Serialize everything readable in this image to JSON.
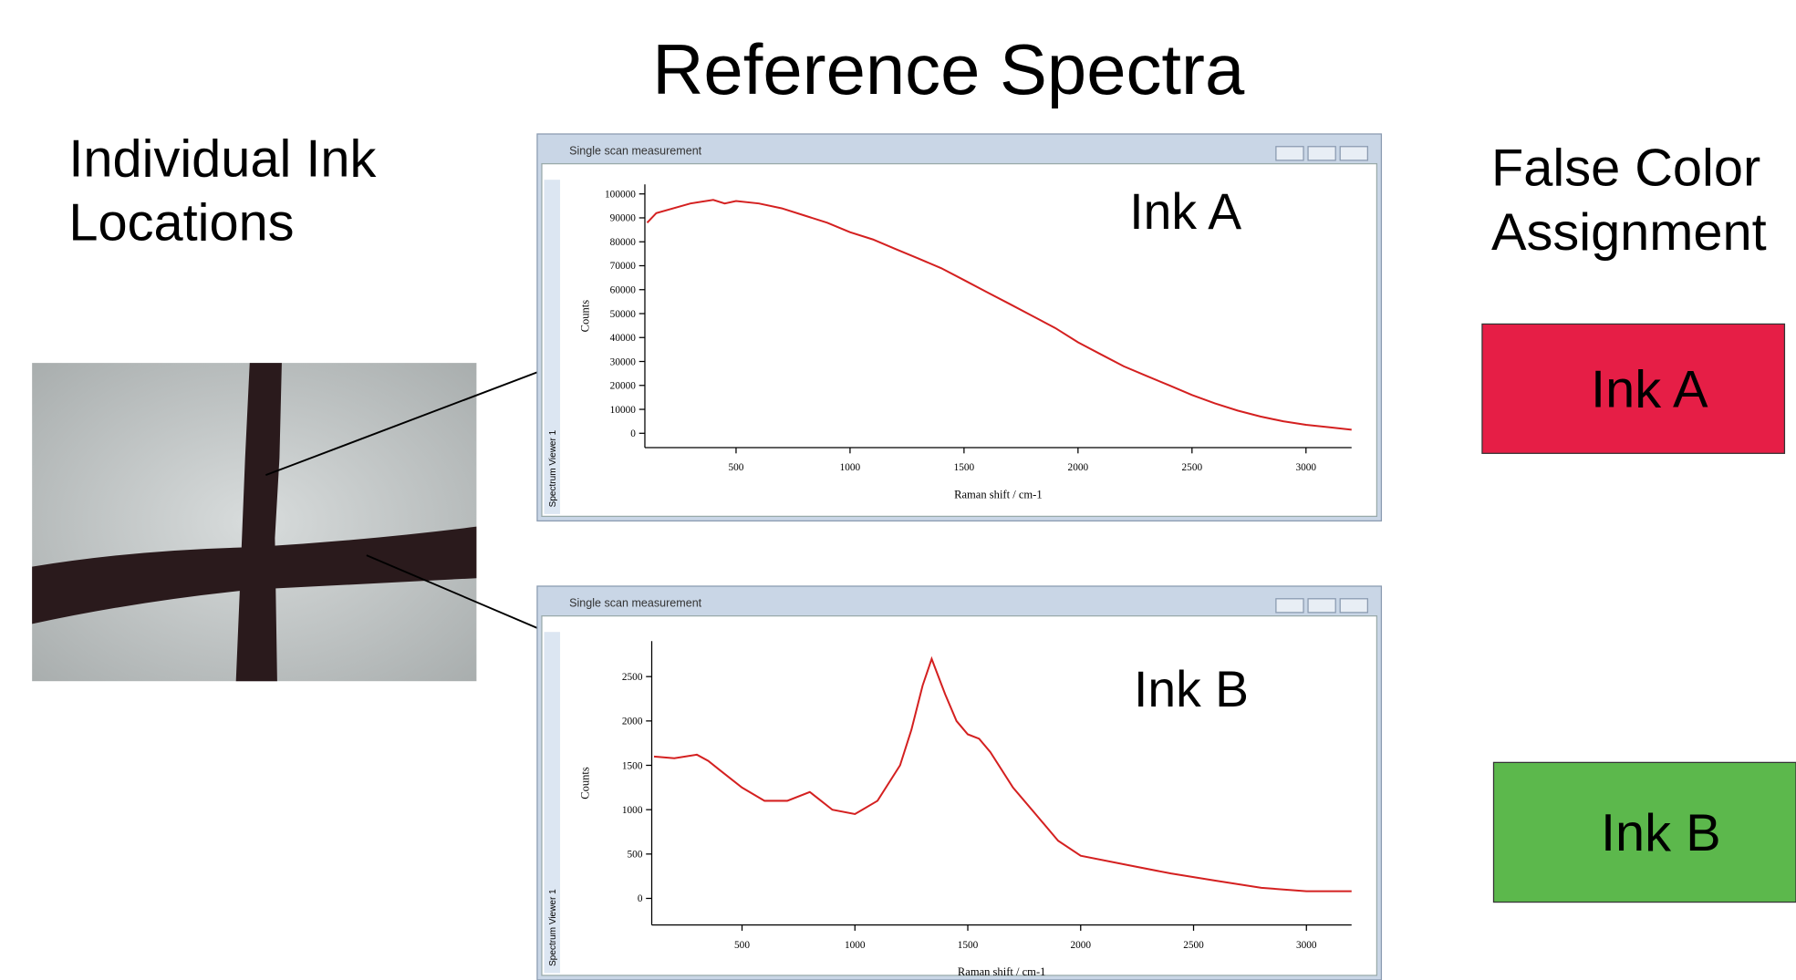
{
  "title": "Reference Spectra",
  "left_label": [
    "Individual Ink",
    "Locations"
  ],
  "right_label": [
    "False Color",
    "Assignment"
  ],
  "assignments": [
    {
      "label": "Ink A",
      "color": "#e61e46"
    },
    {
      "label": "Ink B",
      "color": "#5cb84c"
    }
  ],
  "chart_data": [
    {
      "type": "line",
      "window_title": "Single scan measurement",
      "side_tab": "Spectrum Viewer 1",
      "annotation": "Ink A",
      "x_label": "Raman shift / cm-1",
      "y_label": "Counts",
      "color": "#d42020",
      "x": [
        110,
        150,
        300,
        400,
        450,
        500,
        600,
        700,
        800,
        900,
        1000,
        1100,
        1200,
        1300,
        1400,
        1500,
        1600,
        1700,
        1800,
        1900,
        2000,
        2100,
        2200,
        2300,
        2400,
        2500,
        2600,
        2700,
        2800,
        2900,
        3000,
        3100,
        3200
      ],
      "values": [
        88000,
        92000,
        96000,
        97500,
        96000,
        97000,
        96000,
        94000,
        91000,
        88000,
        84000,
        81000,
        77000,
        73000,
        69000,
        64000,
        59000,
        54000,
        49000,
        44000,
        38000,
        33000,
        28000,
        24000,
        20000,
        16000,
        12500,
        9500,
        7000,
        5000,
        3500,
        2500,
        1500
      ],
      "xlim": [
        100,
        3200
      ],
      "ylim": [
        -6000,
        104000
      ],
      "xticks": [
        500,
        1000,
        1500,
        2000,
        2500,
        3000
      ],
      "yticks": [
        0,
        10000,
        20000,
        30000,
        40000,
        50000,
        60000,
        70000,
        80000,
        90000,
        100000
      ]
    },
    {
      "type": "line",
      "window_title": "Single scan measurement",
      "side_tab": "Spectrum Viewer 1",
      "annotation": "Ink B",
      "x_label": "Raman shift / cm-1",
      "y_label": "Counts",
      "color": "#d42020",
      "x": [
        110,
        200,
        300,
        350,
        400,
        500,
        600,
        700,
        800,
        850,
        900,
        1000,
        1100,
        1200,
        1250,
        1300,
        1340,
        1400,
        1450,
        1500,
        1550,
        1600,
        1700,
        1800,
        1900,
        2000,
        2200,
        2400,
        2600,
        2800,
        3000,
        3200
      ],
      "values": [
        1600,
        1580,
        1620,
        1550,
        1450,
        1250,
        1100,
        1100,
        1200,
        1100,
        1000,
        950,
        1100,
        1500,
        1900,
        2400,
        2700,
        2300,
        2000,
        1850,
        1800,
        1650,
        1250,
        950,
        650,
        480,
        380,
        280,
        200,
        120,
        80,
        80
      ],
      "xlim": [
        100,
        3200
      ],
      "ylim": [
        -300,
        2900
      ],
      "xticks": [
        500,
        1000,
        1500,
        2000,
        2500,
        3000
      ],
      "yticks": [
        0,
        500,
        1000,
        1500,
        2000,
        2500
      ]
    }
  ]
}
